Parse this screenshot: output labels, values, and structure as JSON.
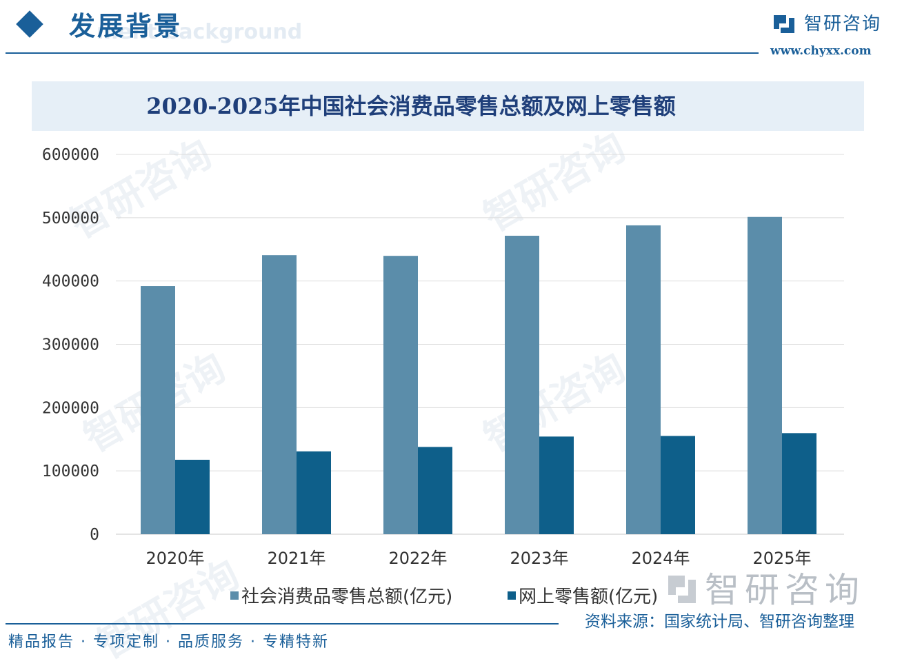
{
  "header": {
    "title": "发展背景",
    "subtitle": "ment background"
  },
  "logo": {
    "name": "智研咨询",
    "url": "www.chyxx.com"
  },
  "watermark": {
    "text": "智研咨询"
  },
  "chart_data": {
    "type": "bar",
    "title": "2020-2025年中国社会消费品零售总额及网上零售额",
    "categories": [
      "2020年",
      "2021年",
      "2022年",
      "2023年",
      "2024年",
      "2025年"
    ],
    "series": [
      {
        "name": "社会消费品零售总额(亿元)",
        "color": "#5b8daa",
        "values": [
          391981,
          440823,
          439733,
          471495,
          487895,
          501200
        ]
      },
      {
        "name": "网上零售额(亿元)",
        "color": "#0e5f8a",
        "values": [
          117601,
          130884,
          137853,
          154264,
          155225,
          159700
        ]
      }
    ],
    "ylim": [
      0,
      600000
    ],
    "yticks": [
      "0",
      "100000",
      "200000",
      "300000",
      "400000",
      "500000",
      "600000"
    ],
    "grid": true,
    "legend_position": "bottom"
  },
  "source": {
    "text": "资料来源：国家统计局、智研咨询整理"
  },
  "footer": {
    "text": "精品报告 · 专项定制 · 品质服务 · 专精特新"
  }
}
